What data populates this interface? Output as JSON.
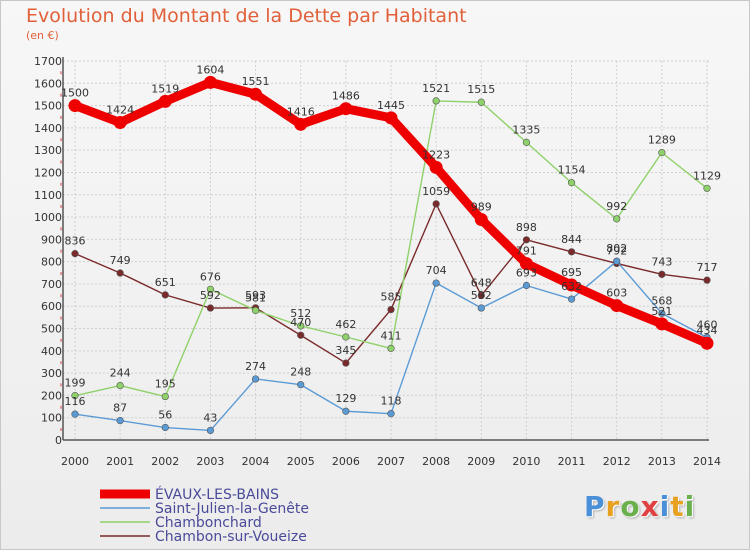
{
  "header": {
    "title": "Evolution du Montant de la Dette par Habitant",
    "subtitle": "(en €)"
  },
  "logo": {
    "text": "Proxiti",
    "colors": [
      "#4a90d9",
      "#e8a020",
      "#6ab04c",
      "#e04040",
      "#4a90d9",
      "#e8a020",
      "#6ab04c"
    ]
  },
  "chart_data": {
    "type": "line",
    "title": "Evolution du Montant de la Dette par Habitant",
    "ylabel": "(en €)",
    "x": [
      "2000",
      "2001",
      "2002",
      "2003",
      "2004",
      "2005",
      "2006",
      "2007",
      "2008",
      "2009",
      "2010",
      "2011",
      "2012",
      "2013",
      "2014"
    ],
    "ylim": [
      0,
      1700
    ],
    "yticks": [
      0,
      100,
      200,
      300,
      400,
      500,
      600,
      700,
      800,
      900,
      1000,
      1100,
      1200,
      1300,
      1400,
      1500,
      1600,
      1700
    ],
    "grid": true,
    "legend": "bottom-left",
    "series": [
      {
        "name": "Chambon-sur-Voueize",
        "color": "#7a2a2a",
        "values": [
          836,
          749,
          651,
          592,
          593,
          470,
          345,
          585,
          1059,
          648,
          898,
          844,
          792,
          743,
          717
        ]
      },
      {
        "name": "Saint-Julien-la-Genête",
        "color": "#5b9bd5",
        "values": [
          116,
          87,
          56,
          43,
          274,
          248,
          129,
          118,
          704,
          592,
          693,
          632,
          802,
          568,
          460
        ]
      },
      {
        "name": "Chambonchard",
        "color": "#8fd16a",
        "values": [
          199,
          244,
          195,
          676,
          581,
          512,
          462,
          411,
          1521,
          1515,
          1335,
          1154,
          992,
          1289,
          1129
        ]
      },
      {
        "name": "ÉVAUX-LES-BAINS",
        "color": "#ee0000",
        "values": [
          1500,
          1424,
          1519,
          1604,
          1551,
          1416,
          1486,
          1445,
          1223,
          989,
          791,
          695,
          603,
          521,
          434
        ]
      }
    ],
    "legend_order": [
      "ÉVAUX-LES-BAINS",
      "Saint-Julien-la-Genête",
      "Chambonchard",
      "Chambon-sur-Voueize"
    ]
  }
}
